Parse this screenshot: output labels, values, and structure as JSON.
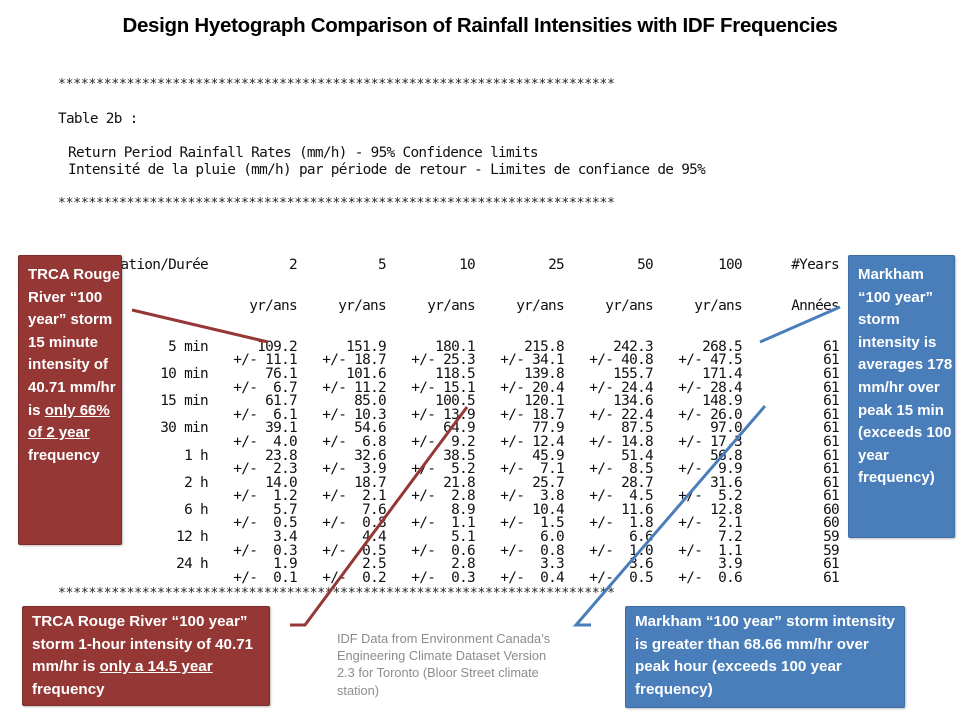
{
  "title": "Design Hyetograph Comparison of Rainfall Intensities with IDF Frequencies",
  "separator": "*************************************************************************",
  "table": {
    "label": "Table 2b :",
    "subtitle_en": "Return Period Rainfall Rates (mm/h) - 95% Confidence limits",
    "subtitle_fr": "Intensité de la pluie (mm/h) par période de retour - Limites de confiance de 95%",
    "header_row1": [
      "Duration/Durée",
      "2",
      "5",
      "10",
      "25",
      "50",
      "100",
      "#Years"
    ],
    "header_row2": [
      "",
      "yr/ans",
      "yr/ans",
      "yr/ans",
      "yr/ans",
      "yr/ans",
      "yr/ans",
      "Années"
    ],
    "rows": [
      {
        "duration": "5 min",
        "values": [
          "109.2",
          "151.9",
          "180.1",
          "215.8",
          "242.3",
          "268.5"
        ],
        "ci": [
          "+/- 11.1",
          "+/- 18.7",
          "+/- 25.3",
          "+/- 34.1",
          "+/- 40.8",
          "+/- 47.5"
        ],
        "years": "61",
        "years_ci": "61"
      },
      {
        "duration": "10 min",
        "values": [
          "76.1",
          "101.6",
          "118.5",
          "139.8",
          "155.7",
          "171.4"
        ],
        "ci": [
          "+/-  6.7",
          "+/- 11.2",
          "+/- 15.1",
          "+/- 20.4",
          "+/- 24.4",
          "+/- 28.4"
        ],
        "years": "61",
        "years_ci": "61"
      },
      {
        "duration": "15 min",
        "values": [
          "61.7",
          "85.0",
          "100.5",
          "120.1",
          "134.6",
          "148.9"
        ],
        "ci": [
          "+/-  6.1",
          "+/- 10.3",
          "+/- 13.9",
          "+/- 18.7",
          "+/- 22.4",
          "+/- 26.0"
        ],
        "years": "61",
        "years_ci": "61"
      },
      {
        "duration": "30 min",
        "values": [
          "39.1",
          "54.6",
          "64.9",
          "77.9",
          "87.5",
          "97.0"
        ],
        "ci": [
          "+/-  4.0",
          "+/-  6.8",
          "+/-  9.2",
          "+/- 12.4",
          "+/- 14.8",
          "+/- 17.3"
        ],
        "years": "61",
        "years_ci": "61"
      },
      {
        "duration": "1 h",
        "values": [
          "23.8",
          "32.6",
          "38.5",
          "45.9",
          "51.4",
          "56.8"
        ],
        "ci": [
          "+/-  2.3",
          "+/-  3.9",
          "+/-  5.2",
          "+/-  7.1",
          "+/-  8.5",
          "+/-  9.9"
        ],
        "years": "61",
        "years_ci": "61"
      },
      {
        "duration": "2 h",
        "values": [
          "14.0",
          "18.7",
          "21.8",
          "25.7",
          "28.7",
          "31.6"
        ],
        "ci": [
          "+/-  1.2",
          "+/-  2.1",
          "+/-  2.8",
          "+/-  3.8",
          "+/-  4.5",
          "+/-  5.2"
        ],
        "years": "61",
        "years_ci": "61"
      },
      {
        "duration": "6 h",
        "values": [
          "5.7",
          "7.6",
          "8.9",
          "10.4",
          "11.6",
          "12.8"
        ],
        "ci": [
          "+/-  0.5",
          "+/-  0.8",
          "+/-  1.1",
          "+/-  1.5",
          "+/-  1.8",
          "+/-  2.1"
        ],
        "years": "60",
        "years_ci": "60"
      },
      {
        "duration": "12 h",
        "values": [
          "3.4",
          "4.4",
          "5.1",
          "6.0",
          "6.6",
          "7.2"
        ],
        "ci": [
          "+/-  0.3",
          "+/-  0.5",
          "+/-  0.6",
          "+/-  0.8",
          "+/-  1.0",
          "+/-  1.1"
        ],
        "years": "59",
        "years_ci": "59"
      },
      {
        "duration": "24 h",
        "values": [
          "1.9",
          "2.5",
          "2.8",
          "3.3",
          "3.6",
          "3.9"
        ],
        "ci": [
          "+/-  0.1",
          "+/-  0.2",
          "+/-  0.3",
          "+/-  0.4",
          "+/-  0.5",
          "+/-  0.6"
        ],
        "years": "61",
        "years_ci": "61"
      }
    ]
  },
  "callouts": {
    "trca_15min": {
      "text_parts": [
        "TRCA Rouge River “100 year” storm 15 minute intensity of 40.71 mm/hr is ",
        "only 66% of 2 year",
        " frequency"
      ],
      "color": "#953735"
    },
    "markham_15min": {
      "text": "Markham “100 year” storm intensity is averages 178 mm/hr over peak 15 min (exceeds 100 year frequency)",
      "color": "#4a7ebb"
    },
    "trca_1hour": {
      "text_parts": [
        "TRCA Rouge River “100 year” storm 1-hour intensity of 40.71 mm/hr is ",
        "only a 14.5 year",
        " frequency"
      ],
      "color": "#953735"
    },
    "markham_1hour": {
      "text": "Markham “100 year” storm intensity is greater than 68.66 mm/hr over peak hour (exceeds 100 year frequency)",
      "color": "#4a7ebb"
    }
  },
  "source_note": "IDF Data from Environment Canada’s Engineering Climate Dataset Version 2.3 for Toronto (Bloor Street climate station)"
}
